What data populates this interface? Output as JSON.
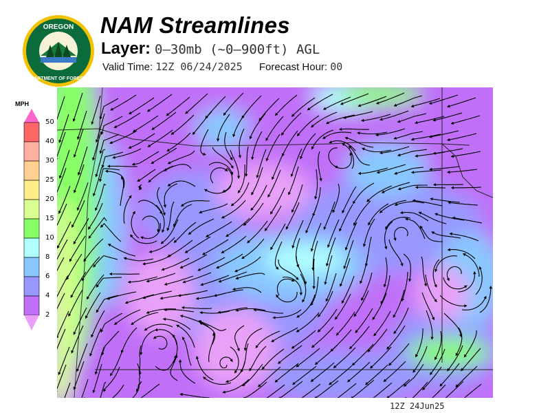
{
  "header": {
    "title": "NAM Streamlines",
    "layer_label": "Layer:",
    "layer_value": "0–30mb (~0–900ft) AGL",
    "valid_label": "Valid Time:",
    "valid_value": "12Z 06/24/2025",
    "forecast_label": "Forecast Hour:",
    "forecast_value": "00"
  },
  "logo": {
    "top_text": "OREGON",
    "bottom_text": "DEPARTMENT OF FORESTRY"
  },
  "legend": {
    "units": "MPH",
    "ticks": [
      "50",
      "40",
      "30",
      "25",
      "20",
      "15",
      "10",
      "8",
      "6",
      "4",
      "2"
    ],
    "colors": [
      "#ff66cc",
      "#ff6666",
      "#ffb0a0",
      "#ffd090",
      "#ffee88",
      "#d8ff90",
      "#88ff66",
      "#b0ffff",
      "#88c8ff",
      "#9898ff",
      "#c070f8",
      "#e8a0f8"
    ]
  },
  "map": {
    "timestamp": "12Z 24Jun25"
  }
}
